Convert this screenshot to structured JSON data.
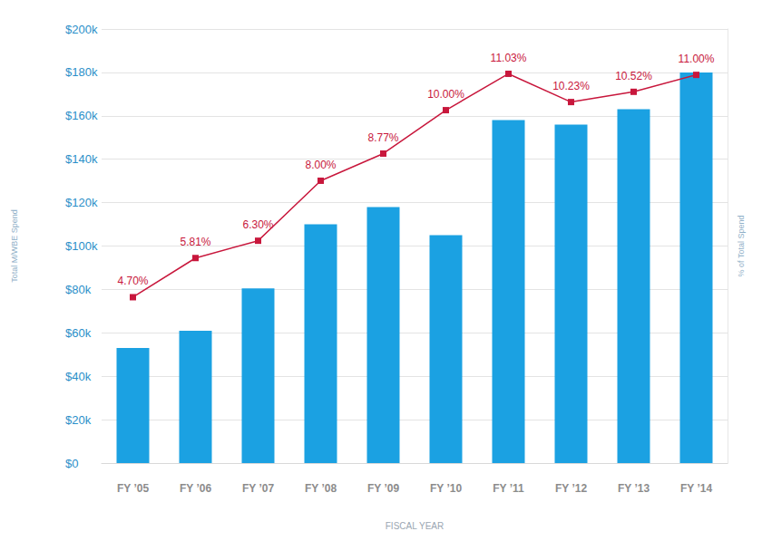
{
  "chart_data": {
    "type": "bar",
    "xlabel": "FISCAL YEAR",
    "ylabel": "Total M/WBE Spend",
    "y2label": "% of Total Spend",
    "categories": [
      "FY ’05",
      "FY ’06",
      "FY ’07",
      "FY ’08",
      "FY ’09",
      "FY ’10",
      "FY ’11",
      "FY ’12",
      "FY ’13",
      "FY ’14"
    ],
    "series": [
      {
        "type": "bar",
        "color": "#1ba1e2",
        "values": [
          53000,
          61000,
          80500,
          110000,
          118000,
          105000,
          158000,
          156000,
          163000,
          180000
        ]
      },
      {
        "type": "line",
        "axis": "y2",
        "color": "#c8173c",
        "marker": "square",
        "line_style": "solid",
        "data_labels": true,
        "values": [
          4.7,
          5.81,
          6.3,
          8.0,
          8.77,
          10.0,
          11.03,
          10.23,
          10.52,
          11.0
        ],
        "value_labels": [
          "4.70%",
          "5.81%",
          "6.30%",
          "8.00%",
          "8.77%",
          "10.00%",
          "11.03%",
          "10.23%",
          "10.52%",
          "11.00%"
        ]
      }
    ],
    "ylim": [
      0,
      200000
    ],
    "yticks": [
      {
        "value": 0,
        "label": "$0"
      },
      {
        "value": 20000,
        "label": "$20k"
      },
      {
        "value": 40000,
        "label": "$40k"
      },
      {
        "value": 60000,
        "label": "$60k"
      },
      {
        "value": 80000,
        "label": "$80k"
      },
      {
        "value": 100000,
        "label": "$100k"
      },
      {
        "value": 120000,
        "label": "$120k"
      },
      {
        "value": 140000,
        "label": "$140k"
      },
      {
        "value": 160000,
        "label": "$160k"
      },
      {
        "value": 180000,
        "label": "$180k"
      },
      {
        "value": 200000,
        "label": "$200k"
      }
    ],
    "y2lim": [
      0,
      12.3
    ],
    "y2ticks": [],
    "grid": true
  }
}
